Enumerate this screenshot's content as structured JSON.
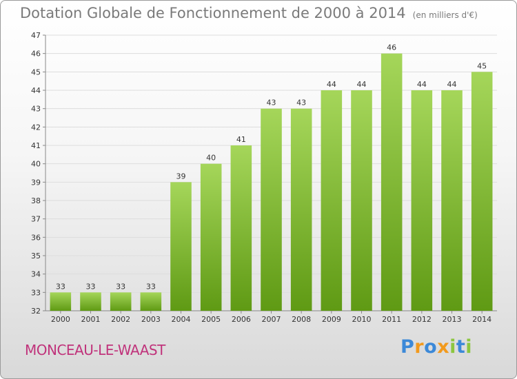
{
  "colors": {
    "bar_light": "#a5d65a",
    "bar_dark": "#5f9a14",
    "title": "#7a7a7a",
    "commune": "#c0337b",
    "logo_blue": "#3c89d8",
    "logo_orange": "#f29a1d",
    "logo_green": "#8cc63f"
  },
  "header": {
    "title": "Dotation Globale de Fonctionnement de 2000 à 2014",
    "subtitle": "(en milliers d'€)"
  },
  "footer": {
    "commune": "MONCEAU-LE-WAAST",
    "logo_text": "Proxiti"
  },
  "chart_data": {
    "type": "bar",
    "title": "Dotation Globale de Fonctionnement de 2000 à 2014",
    "subtitle": "(en milliers d'€)",
    "xlabel": "",
    "ylabel": "",
    "categories": [
      "2000",
      "2001",
      "2002",
      "2003",
      "2004",
      "2005",
      "2006",
      "2007",
      "2008",
      "2009",
      "2010",
      "2011",
      "2012",
      "2013",
      "2014"
    ],
    "values": [
      33,
      33,
      33,
      33,
      39,
      40,
      41,
      43,
      43,
      44,
      44,
      46,
      44,
      44,
      45
    ],
    "ylim": [
      32,
      47
    ],
    "yticks": [
      32,
      33,
      34,
      35,
      36,
      37,
      38,
      39,
      40,
      41,
      42,
      43,
      44,
      45,
      46,
      47
    ],
    "grid": true,
    "data_labels": true,
    "legend": "none"
  }
}
